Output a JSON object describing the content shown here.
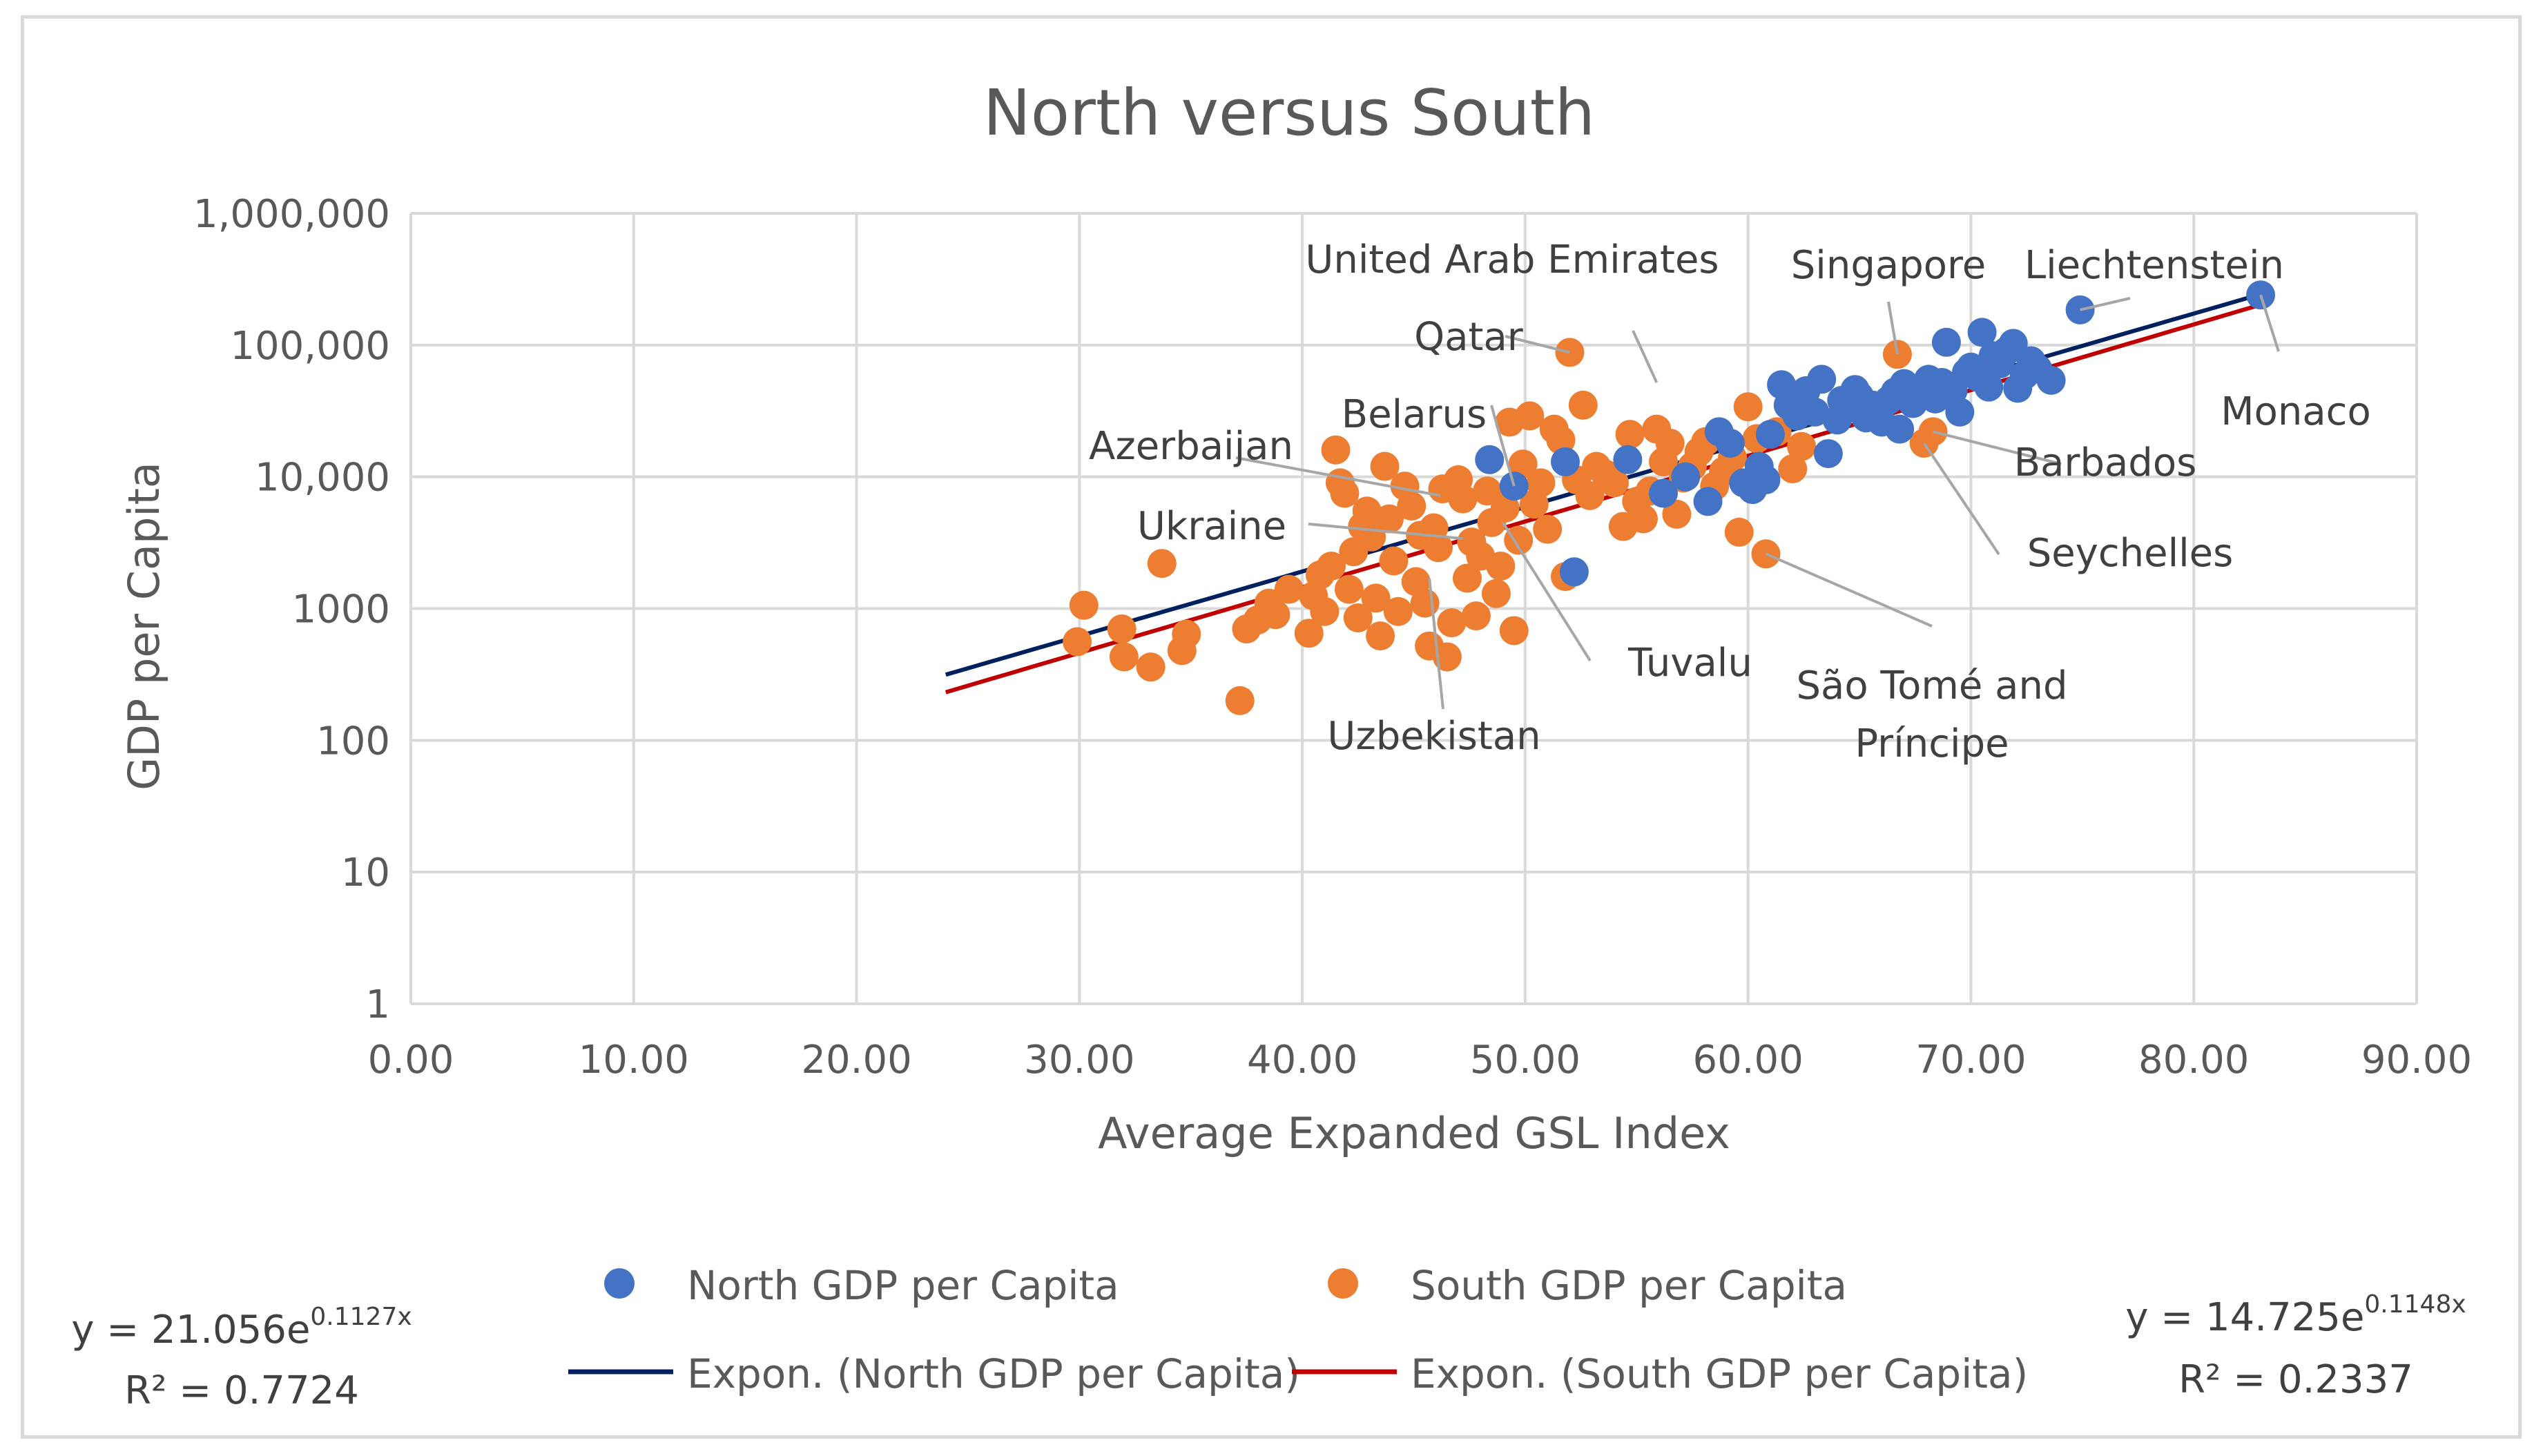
{
  "chart_data": {
    "type": "scatter",
    "title": "North versus South",
    "xlabel": "Average Expanded GSL Index",
    "ylabel": "GDP per Capita",
    "xlim": [
      0,
      90
    ],
    "ylim": [
      1,
      1000000
    ],
    "yscale": "log",
    "grid": true,
    "x_tick_labels": [
      "0.00",
      "10.00",
      "20.00",
      "30.00",
      "40.00",
      "50.00",
      "60.00",
      "70.00",
      "80.00",
      "90.00"
    ],
    "y_tick_labels": [
      "1",
      "10",
      "100",
      "1000",
      "10,000",
      "100,000",
      "1,000,000"
    ],
    "colors": {
      "north": "#4472c4",
      "south": "#ed7d31",
      "north_trend": "#002060",
      "south_trend": "#c00000",
      "grid": "#d9d9d9",
      "text": "#595959"
    },
    "series": [
      {
        "name": "North GDP per Capita",
        "points": [
          [
            48.4,
            13500
          ],
          [
            49.5,
            8500
          ],
          [
            51.8,
            13000
          ],
          [
            52.2,
            1900
          ],
          [
            54.6,
            13500
          ],
          [
            56.2,
            7500
          ],
          [
            57.2,
            10000
          ],
          [
            58.2,
            6500
          ],
          [
            58.7,
            22000
          ],
          [
            59.2,
            18000
          ],
          [
            59.8,
            9000
          ],
          [
            60.2,
            8000
          ],
          [
            60.5,
            12000
          ],
          [
            60.8,
            9500
          ],
          [
            61.0,
            21000
          ],
          [
            61.5,
            50000
          ],
          [
            61.8,
            35000
          ],
          [
            62.2,
            29000
          ],
          [
            62.6,
            45000
          ],
          [
            63.0,
            31000
          ],
          [
            63.3,
            55000
          ],
          [
            63.6,
            15000
          ],
          [
            64.0,
            27000
          ],
          [
            64.2,
            38000
          ],
          [
            64.5,
            33000
          ],
          [
            64.8,
            46000
          ],
          [
            65.0,
            41000
          ],
          [
            65.3,
            28000
          ],
          [
            65.6,
            35000
          ],
          [
            66.0,
            26000
          ],
          [
            66.3,
            38000
          ],
          [
            66.6,
            44000
          ],
          [
            66.8,
            23000
          ],
          [
            67.0,
            51000
          ],
          [
            67.4,
            36000
          ],
          [
            67.8,
            48000
          ],
          [
            68.1,
            55000
          ],
          [
            68.4,
            39000
          ],
          [
            68.7,
            52000
          ],
          [
            68.9,
            105000
          ],
          [
            69.2,
            45000
          ],
          [
            69.5,
            31000
          ],
          [
            69.8,
            62000
          ],
          [
            70.0,
            68000
          ],
          [
            70.3,
            57000
          ],
          [
            70.5,
            125000
          ],
          [
            70.8,
            48000
          ],
          [
            71.0,
            83000
          ],
          [
            71.3,
            72000
          ],
          [
            71.6,
            90000
          ],
          [
            71.9,
            103000
          ],
          [
            72.1,
            47000
          ],
          [
            72.4,
            59000
          ],
          [
            72.7,
            76000
          ],
          [
            73.0,
            66000
          ],
          [
            73.6,
            54000
          ],
          [
            74.9,
            185000
          ],
          [
            83.0,
            240000
          ]
        ]
      },
      {
        "name": "South GDP per Capita",
        "points": [
          [
            29.9,
            560
          ],
          [
            30.2,
            1060
          ],
          [
            31.9,
            700
          ],
          [
            32.0,
            430
          ],
          [
            33.2,
            360
          ],
          [
            33.7,
            2200
          ],
          [
            34.6,
            480
          ],
          [
            34.8,
            640
          ],
          [
            37.2,
            200
          ],
          [
            37.5,
            700
          ],
          [
            38.0,
            820
          ],
          [
            38.5,
            1100
          ],
          [
            38.8,
            900
          ],
          [
            39.4,
            1400
          ],
          [
            40.3,
            650
          ],
          [
            40.5,
            1250
          ],
          [
            40.8,
            1800
          ],
          [
            41.0,
            950
          ],
          [
            41.3,
            2100
          ],
          [
            41.5,
            16000
          ],
          [
            41.7,
            9000
          ],
          [
            41.9,
            7500
          ],
          [
            42.1,
            1400
          ],
          [
            42.3,
            2700
          ],
          [
            42.5,
            850
          ],
          [
            42.7,
            4200
          ],
          [
            42.9,
            5500
          ],
          [
            43.1,
            3500
          ],
          [
            43.3,
            1200
          ],
          [
            43.5,
            620
          ],
          [
            43.7,
            12000
          ],
          [
            43.9,
            4800
          ],
          [
            44.1,
            2300
          ],
          [
            44.3,
            950
          ],
          [
            44.6,
            8500
          ],
          [
            44.9,
            6000
          ],
          [
            45.1,
            1600
          ],
          [
            45.3,
            3600
          ],
          [
            45.5,
            1100
          ],
          [
            45.7,
            520
          ],
          [
            45.9,
            4100
          ],
          [
            46.1,
            2900
          ],
          [
            46.3,
            8100
          ],
          [
            46.5,
            430
          ],
          [
            46.7,
            780
          ],
          [
            47.0,
            9500
          ],
          [
            47.2,
            6800
          ],
          [
            47.4,
            1700
          ],
          [
            47.6,
            3200
          ],
          [
            47.8,
            880
          ],
          [
            48.0,
            2500
          ],
          [
            48.3,
            7800
          ],
          [
            48.5,
            4500
          ],
          [
            48.7,
            1300
          ],
          [
            48.9,
            2100
          ],
          [
            49.1,
            5800
          ],
          [
            49.3,
            26000
          ],
          [
            49.5,
            680
          ],
          [
            49.7,
            3300
          ],
          [
            49.9,
            12500
          ],
          [
            50.2,
            29000
          ],
          [
            50.4,
            6200
          ],
          [
            50.7,
            9000
          ],
          [
            51.0,
            4000
          ],
          [
            51.3,
            23000
          ],
          [
            51.6,
            19000
          ],
          [
            51.8,
            1750
          ],
          [
            52.0,
            88000
          ],
          [
            52.3,
            9500
          ],
          [
            52.6,
            35000
          ],
          [
            52.9,
            7200
          ],
          [
            53.2,
            12000
          ],
          [
            53.6,
            10500
          ],
          [
            54.0,
            9000
          ],
          [
            54.4,
            4200
          ],
          [
            54.7,
            21000
          ],
          [
            55.0,
            6500
          ],
          [
            55.3,
            4800
          ],
          [
            55.6,
            7800
          ],
          [
            55.9,
            23000
          ],
          [
            56.2,
            13000
          ],
          [
            56.5,
            18000
          ],
          [
            56.8,
            5200
          ],
          [
            57.1,
            9800
          ],
          [
            57.5,
            12000
          ],
          [
            57.8,
            15500
          ],
          [
            58.1,
            18500
          ],
          [
            58.5,
            8500
          ],
          [
            58.9,
            11000
          ],
          [
            59.3,
            14000
          ],
          [
            59.6,
            3800
          ],
          [
            60.0,
            34000
          ],
          [
            60.4,
            19500
          ],
          [
            60.8,
            2600
          ],
          [
            61.3,
            22000
          ],
          [
            62.0,
            11500
          ],
          [
            62.4,
            17000
          ],
          [
            66.7,
            85000
          ],
          [
            67.9,
            18000
          ],
          [
            68.3,
            22000
          ]
        ]
      }
    ],
    "trendlines": [
      {
        "name": "Expon. (North GDP per Capita)",
        "a": 21.056,
        "b": 0.1127,
        "x_range": [
          24,
          83
        ],
        "equation_prefix": "y = 21.056e",
        "equation_exp": "0.1127x",
        "r2_text": "R² = 0.7724"
      },
      {
        "name": "Expon. (South GDP per Capita)",
        "a": 14.725,
        "b": 0.1148,
        "x_range": [
          24,
          83
        ],
        "equation_prefix": "y = 14.725e",
        "equation_exp": "0.1148x",
        "r2_text": "R² = 0.2337"
      }
    ],
    "annotations": [
      {
        "label": "United Arab Emirates",
        "x": 55.9,
        "y": 52000
      },
      {
        "label": "Qatar",
        "x": 52.0,
        "y": 88000
      },
      {
        "label": "Singapore",
        "x": 66.7,
        "y": 85000
      },
      {
        "label": "Liechtenstein",
        "x": 74.9,
        "y": 185000
      },
      {
        "label": "Monaco",
        "x": 83.0,
        "y": 240000
      },
      {
        "label": "Belarus",
        "x": 49.5,
        "y": 8500
      },
      {
        "label": "Azerbaijan",
        "x": 46.2,
        "y": 7200
      },
      {
        "label": "Barbados",
        "x": 68.3,
        "y": 22000
      },
      {
        "label": "Ukraine",
        "x": 47.2,
        "y": 3400
      },
      {
        "label": "Seychelles",
        "x": 67.9,
        "y": 18000
      },
      {
        "label": "Tuvalu",
        "x": 49.0,
        "y": 4500
      },
      {
        "label": "São Tomé and Príncipe",
        "x": 60.8,
        "y": 2600
      },
      {
        "label": "Uzbekistan",
        "x": 45.7,
        "y": 1700
      }
    ]
  }
}
